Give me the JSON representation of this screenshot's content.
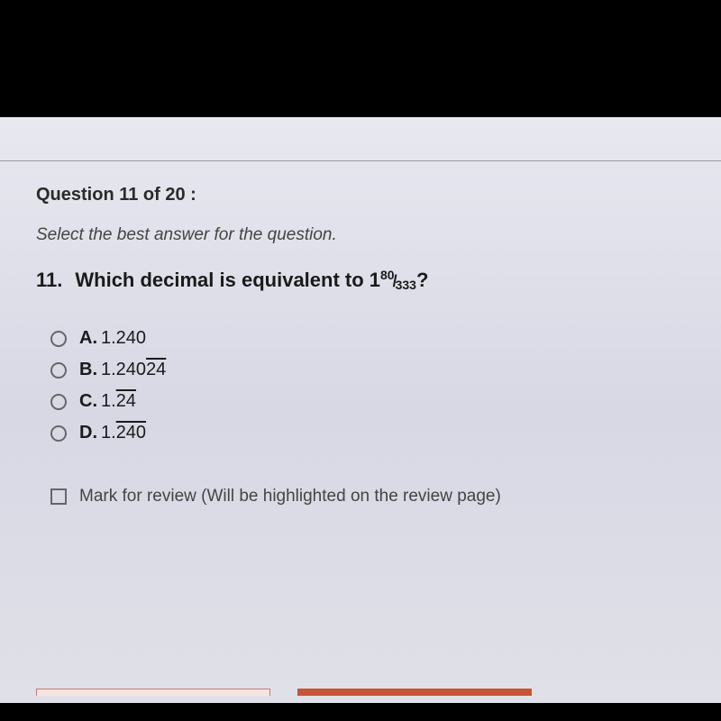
{
  "header": {
    "question_label": "Question 11 of 20 :",
    "instruction": "Select the best answer for the question."
  },
  "question": {
    "number": "11.",
    "text_prefix": "Which decimal is equivalent to 1",
    "numerator": "80",
    "slash": "/",
    "denominator": "333",
    "text_suffix": "?"
  },
  "options": {
    "a": {
      "letter": "A.",
      "value_pre": " 1.240",
      "value_overline": ""
    },
    "b": {
      "letter": "B.",
      "value_pre": " 1.240",
      "value_overline": "24"
    },
    "c": {
      "letter": "C.",
      "value_pre": " 1.",
      "value_overline": "24"
    },
    "d": {
      "letter": "D.",
      "value_pre": " 1.",
      "value_overline": "240"
    }
  },
  "review": {
    "label": "Mark for review (Will be highlighted on the review page)"
  },
  "styling": {
    "background_gradient_top": "#e8e8f0",
    "background_gradient_bottom": "#e0e0e8",
    "text_color": "#1a1a1a",
    "instruction_color": "#444444",
    "radio_border": "#666666",
    "divider_color": "#999999",
    "accent_button": "#c85535",
    "header_fontsize": 20,
    "question_fontsize": 22,
    "option_fontsize": 20,
    "review_fontsize": 19
  }
}
